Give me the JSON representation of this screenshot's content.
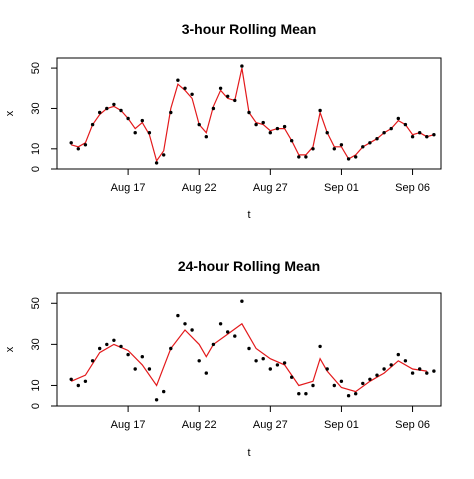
{
  "chart_data": [
    {
      "type": "line",
      "title": "3-hour Rolling Mean",
      "xlabel": "t",
      "ylabel": "x",
      "xlim": [
        "2013-08-12",
        "2013-09-08"
      ],
      "ylim": [
        0,
        55
      ],
      "x_ticks": [
        {
          "date": "2013-08-17",
          "label": "Aug 17"
        },
        {
          "date": "2013-08-22",
          "label": "Aug 22"
        },
        {
          "date": "2013-08-27",
          "label": "Aug 27"
        },
        {
          "date": "2013-09-01",
          "label": "Sep 01"
        },
        {
          "date": "2013-09-06",
          "label": "Sep 06"
        }
      ],
      "y_ticks": [
        0,
        10,
        30,
        50
      ],
      "series": [
        {
          "style": "points",
          "color": "#000000",
          "points": [
            [
              "2013-08-13 00:00",
              13
            ],
            [
              "2013-08-13 12:00",
              10
            ],
            [
              "2013-08-14 00:00",
              12
            ],
            [
              "2013-08-14 12:00",
              22
            ],
            [
              "2013-08-15 00:00",
              28
            ],
            [
              "2013-08-15 12:00",
              30
            ],
            [
              "2013-08-16 00:00",
              32
            ],
            [
              "2013-08-16 12:00",
              29
            ],
            [
              "2013-08-17 00:00",
              25
            ],
            [
              "2013-08-17 12:00",
              18
            ],
            [
              "2013-08-18 00:00",
              24
            ],
            [
              "2013-08-18 12:00",
              18
            ],
            [
              "2013-08-19 00:00",
              3
            ],
            [
              "2013-08-19 12:00",
              7
            ],
            [
              "2013-08-20 00:00",
              28
            ],
            [
              "2013-08-20 12:00",
              44
            ],
            [
              "2013-08-21 00:00",
              40
            ],
            [
              "2013-08-21 12:00",
              37
            ],
            [
              "2013-08-22 00:00",
              22
            ],
            [
              "2013-08-22 12:00",
              16
            ],
            [
              "2013-08-23 00:00",
              30
            ],
            [
              "2013-08-23 12:00",
              40
            ],
            [
              "2013-08-24 00:00",
              36
            ],
            [
              "2013-08-24 12:00",
              34
            ],
            [
              "2013-08-25 00:00",
              51
            ],
            [
              "2013-08-25 12:00",
              28
            ],
            [
              "2013-08-26 00:00",
              22
            ],
            [
              "2013-08-26 12:00",
              23
            ],
            [
              "2013-08-27 00:00",
              18
            ],
            [
              "2013-08-27 12:00",
              20
            ],
            [
              "2013-08-28 00:00",
              21
            ],
            [
              "2013-08-28 12:00",
              14
            ],
            [
              "2013-08-29 00:00",
              6
            ],
            [
              "2013-08-29 12:00",
              6
            ],
            [
              "2013-08-30 00:00",
              10
            ],
            [
              "2013-08-30 12:00",
              29
            ],
            [
              "2013-08-31 00:00",
              18
            ],
            [
              "2013-08-31 12:00",
              10
            ],
            [
              "2013-09-01 00:00",
              12
            ],
            [
              "2013-09-01 12:00",
              5
            ],
            [
              "2013-09-02 00:00",
              6
            ],
            [
              "2013-09-02 12:00",
              11
            ],
            [
              "2013-09-03 00:00",
              13
            ],
            [
              "2013-09-03 12:00",
              15
            ],
            [
              "2013-09-04 00:00",
              18
            ],
            [
              "2013-09-04 12:00",
              20
            ],
            [
              "2013-09-05 00:00",
              25
            ],
            [
              "2013-09-05 12:00",
              22
            ],
            [
              "2013-09-06 00:00",
              16
            ],
            [
              "2013-09-06 12:00",
              18
            ],
            [
              "2013-09-07 00:00",
              16
            ],
            [
              "2013-09-07 12:00",
              17
            ]
          ]
        },
        {
          "style": "line",
          "color": "#e31a1c",
          "points": [
            [
              "2013-08-13 00:00",
              12
            ],
            [
              "2013-08-13 12:00",
              11
            ],
            [
              "2013-08-14 00:00",
              13
            ],
            [
              "2013-08-14 12:00",
              22
            ],
            [
              "2013-08-15 00:00",
              27
            ],
            [
              "2013-08-15 12:00",
              30
            ],
            [
              "2013-08-16 00:00",
              31
            ],
            [
              "2013-08-16 12:00",
              29
            ],
            [
              "2013-08-17 00:00",
              25
            ],
            [
              "2013-08-17 12:00",
              20
            ],
            [
              "2013-08-18 00:00",
              23
            ],
            [
              "2013-08-18 12:00",
              17
            ],
            [
              "2013-08-19 00:00",
              4
            ],
            [
              "2013-08-19 12:00",
              9
            ],
            [
              "2013-08-20 00:00",
              30
            ],
            [
              "2013-08-20 12:00",
              42
            ],
            [
              "2013-08-21 00:00",
              39
            ],
            [
              "2013-08-21 12:00",
              35
            ],
            [
              "2013-08-22 00:00",
              22
            ],
            [
              "2013-08-22 12:00",
              18
            ],
            [
              "2013-08-23 00:00",
              31
            ],
            [
              "2013-08-23 12:00",
              39
            ],
            [
              "2013-08-24 00:00",
              35
            ],
            [
              "2013-08-24 12:00",
              34
            ],
            [
              "2013-08-25 00:00",
              50
            ],
            [
              "2013-08-25 12:00",
              28
            ],
            [
              "2013-08-26 00:00",
              23
            ],
            [
              "2013-08-26 12:00",
              22
            ],
            [
              "2013-08-27 00:00",
              19
            ],
            [
              "2013-08-27 12:00",
              20
            ],
            [
              "2013-08-28 00:00",
              20
            ],
            [
              "2013-08-28 12:00",
              14
            ],
            [
              "2013-08-29 00:00",
              7
            ],
            [
              "2013-08-29 12:00",
              7
            ],
            [
              "2013-08-30 00:00",
              11
            ],
            [
              "2013-08-30 12:00",
              28
            ],
            [
              "2013-08-31 00:00",
              18
            ],
            [
              "2013-08-31 12:00",
              11
            ],
            [
              "2013-09-01 00:00",
              11
            ],
            [
              "2013-09-01 12:00",
              5
            ],
            [
              "2013-09-02 00:00",
              7
            ],
            [
              "2013-09-02 12:00",
              11
            ],
            [
              "2013-09-03 00:00",
              13
            ],
            [
              "2013-09-03 12:00",
              15
            ],
            [
              "2013-09-04 00:00",
              18
            ],
            [
              "2013-09-04 12:00",
              20
            ],
            [
              "2013-09-05 00:00",
              24
            ],
            [
              "2013-09-05 12:00",
              22
            ],
            [
              "2013-09-06 00:00",
              17
            ],
            [
              "2013-09-06 12:00",
              18
            ],
            [
              "2013-09-07 00:00",
              16
            ],
            [
              "2013-09-07 12:00",
              17
            ]
          ]
        }
      ]
    },
    {
      "type": "line",
      "title": "24-hour Rolling Mean",
      "xlabel": "t",
      "ylabel": "x",
      "xlim": [
        "2013-08-12",
        "2013-09-08"
      ],
      "ylim": [
        0,
        55
      ],
      "x_ticks": [
        {
          "date": "2013-08-17",
          "label": "Aug 17"
        },
        {
          "date": "2013-08-22",
          "label": "Aug 22"
        },
        {
          "date": "2013-08-27",
          "label": "Aug 27"
        },
        {
          "date": "2013-09-01",
          "label": "Sep 01"
        },
        {
          "date": "2013-09-06",
          "label": "Sep 06"
        }
      ],
      "y_ticks": [
        0,
        10,
        30,
        50
      ],
      "series": [
        {
          "style": "points",
          "color": "#000000",
          "points": [
            [
              "2013-08-13 00:00",
              13
            ],
            [
              "2013-08-13 12:00",
              10
            ],
            [
              "2013-08-14 00:00",
              12
            ],
            [
              "2013-08-14 12:00",
              22
            ],
            [
              "2013-08-15 00:00",
              28
            ],
            [
              "2013-08-15 12:00",
              30
            ],
            [
              "2013-08-16 00:00",
              32
            ],
            [
              "2013-08-16 12:00",
              29
            ],
            [
              "2013-08-17 00:00",
              25
            ],
            [
              "2013-08-17 12:00",
              18
            ],
            [
              "2013-08-18 00:00",
              24
            ],
            [
              "2013-08-18 12:00",
              18
            ],
            [
              "2013-08-19 00:00",
              3
            ],
            [
              "2013-08-19 12:00",
              7
            ],
            [
              "2013-08-20 00:00",
              28
            ],
            [
              "2013-08-20 12:00",
              44
            ],
            [
              "2013-08-21 00:00",
              40
            ],
            [
              "2013-08-21 12:00",
              37
            ],
            [
              "2013-08-22 00:00",
              22
            ],
            [
              "2013-08-22 12:00",
              16
            ],
            [
              "2013-08-23 00:00",
              30
            ],
            [
              "2013-08-23 12:00",
              40
            ],
            [
              "2013-08-24 00:00",
              36
            ],
            [
              "2013-08-24 12:00",
              34
            ],
            [
              "2013-08-25 00:00",
              51
            ],
            [
              "2013-08-25 12:00",
              28
            ],
            [
              "2013-08-26 00:00",
              22
            ],
            [
              "2013-08-26 12:00",
              23
            ],
            [
              "2013-08-27 00:00",
              18
            ],
            [
              "2013-08-27 12:00",
              20
            ],
            [
              "2013-08-28 00:00",
              21
            ],
            [
              "2013-08-28 12:00",
              14
            ],
            [
              "2013-08-29 00:00",
              6
            ],
            [
              "2013-08-29 12:00",
              6
            ],
            [
              "2013-08-30 00:00",
              10
            ],
            [
              "2013-08-30 12:00",
              29
            ],
            [
              "2013-08-31 00:00",
              18
            ],
            [
              "2013-08-31 12:00",
              10
            ],
            [
              "2013-09-01 00:00",
              12
            ],
            [
              "2013-09-01 12:00",
              5
            ],
            [
              "2013-09-02 00:00",
              6
            ],
            [
              "2013-09-02 12:00",
              11
            ],
            [
              "2013-09-03 00:00",
              13
            ],
            [
              "2013-09-03 12:00",
              15
            ],
            [
              "2013-09-04 00:00",
              18
            ],
            [
              "2013-09-04 12:00",
              20
            ],
            [
              "2013-09-05 00:00",
              25
            ],
            [
              "2013-09-05 12:00",
              22
            ],
            [
              "2013-09-06 00:00",
              16
            ],
            [
              "2013-09-06 12:00",
              18
            ],
            [
              "2013-09-07 00:00",
              16
            ],
            [
              "2013-09-07 12:00",
              17
            ]
          ]
        },
        {
          "style": "line",
          "color": "#e31a1c",
          "points": [
            [
              "2013-08-13 00:00",
              12
            ],
            [
              "2013-08-14 00:00",
              15
            ],
            [
              "2013-08-15 00:00",
              26
            ],
            [
              "2013-08-16 00:00",
              30
            ],
            [
              "2013-08-17 00:00",
              27
            ],
            [
              "2013-08-18 00:00",
              20
            ],
            [
              "2013-08-19 00:00",
              10
            ],
            [
              "2013-08-20 00:00",
              28
            ],
            [
              "2013-08-21 00:00",
              37
            ],
            [
              "2013-08-22 00:00",
              30
            ],
            [
              "2013-08-22 12:00",
              24
            ],
            [
              "2013-08-23 00:00",
              30
            ],
            [
              "2013-08-24 00:00",
              35
            ],
            [
              "2013-08-25 00:00",
              40
            ],
            [
              "2013-08-26 00:00",
              28
            ],
            [
              "2013-08-27 00:00",
              23
            ],
            [
              "2013-08-28 00:00",
              20
            ],
            [
              "2013-08-29 00:00",
              10
            ],
            [
              "2013-08-30 00:00",
              12
            ],
            [
              "2013-08-30 12:00",
              23
            ],
            [
              "2013-08-31 00:00",
              17
            ],
            [
              "2013-09-01 00:00",
              9
            ],
            [
              "2013-09-02 00:00",
              7
            ],
            [
              "2013-09-03 00:00",
              12
            ],
            [
              "2013-09-04 00:00",
              16
            ],
            [
              "2013-09-05 00:00",
              22
            ],
            [
              "2013-09-06 00:00",
              18
            ],
            [
              "2013-09-07 00:00",
              17
            ]
          ]
        }
      ]
    }
  ]
}
